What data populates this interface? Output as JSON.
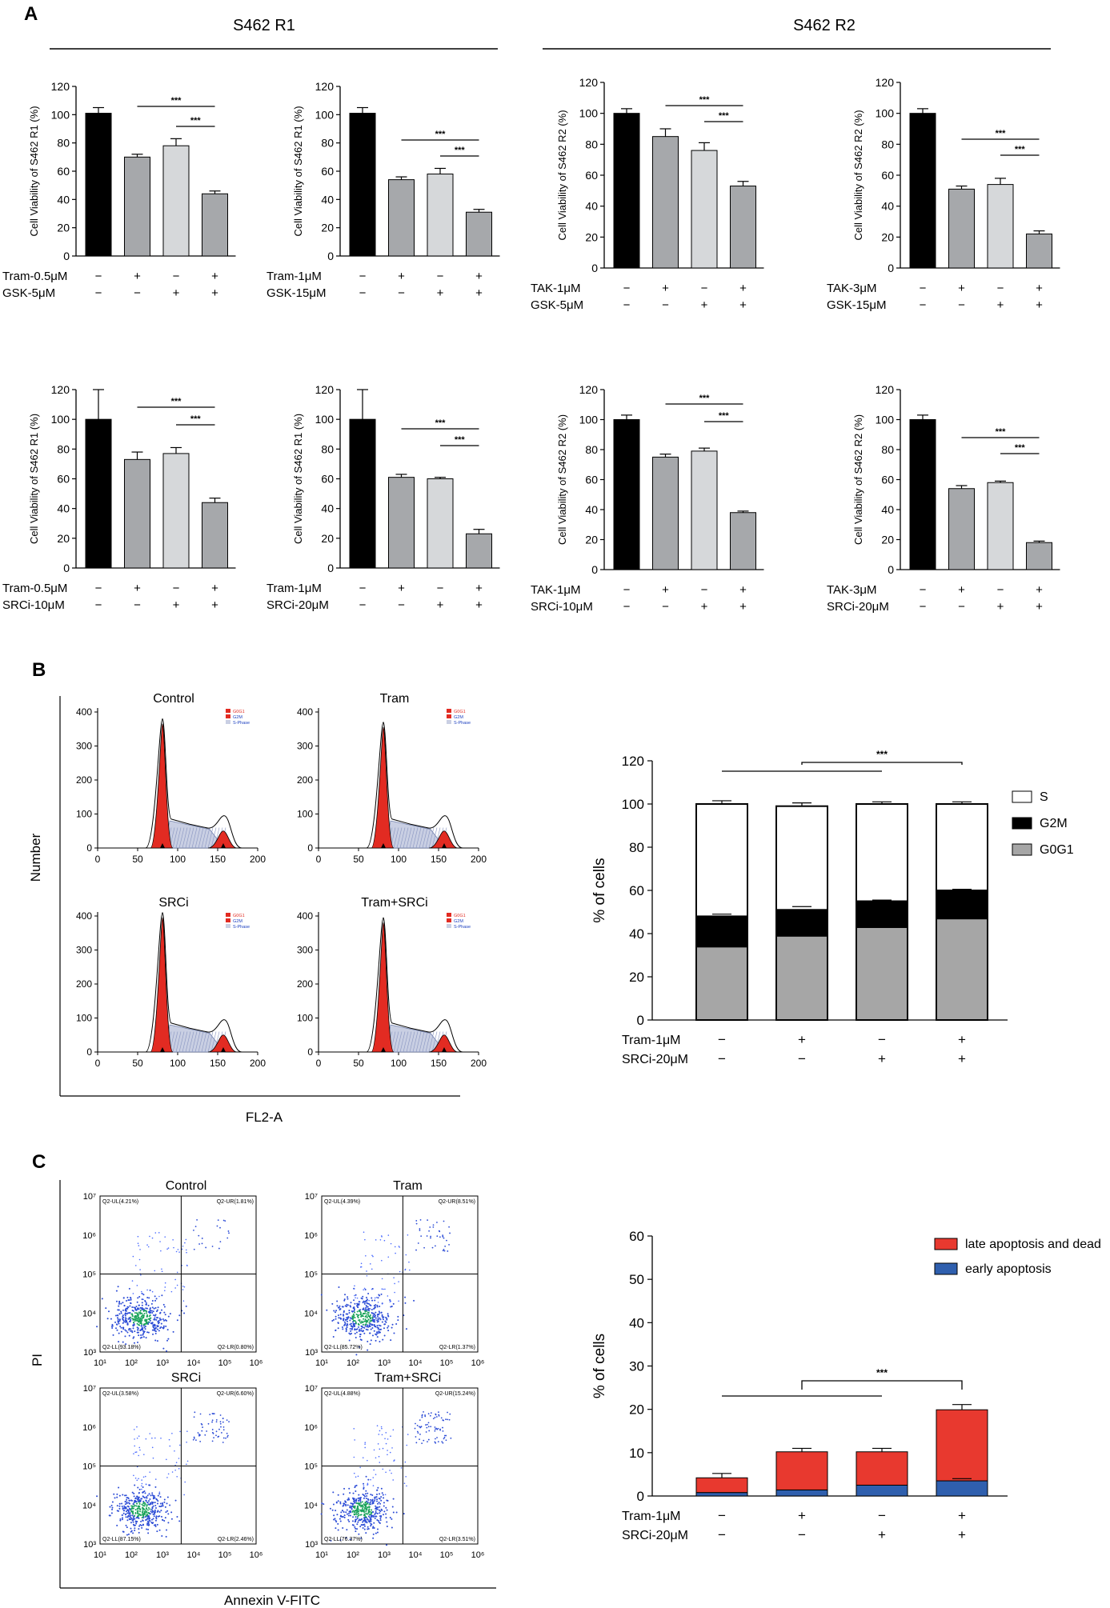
{
  "panels": {
    "A": "A",
    "B": "B",
    "C": "C"
  },
  "groupA": {
    "left": "S462 R1",
    "right": "S462 R2"
  },
  "sig": "***",
  "chart_data": [
    {
      "id": "a1",
      "type": "bar",
      "ylabel": "Cell Viability of S462 R1 (%)",
      "ylim": [
        0,
        120
      ],
      "yticks": [
        0,
        20,
        40,
        60,
        80,
        100,
        120
      ],
      "values": [
        101,
        70,
        78,
        44
      ],
      "errors": [
        4,
        2,
        5,
        2
      ],
      "conditions": [
        {
          "label": "Tram-0.5μM",
          "signs": [
            "−",
            "+",
            "−",
            "+"
          ]
        },
        {
          "label": "GSK-5μM",
          "signs": [
            "−",
            "−",
            "+",
            "+"
          ]
        }
      ]
    },
    {
      "id": "a2",
      "type": "bar",
      "ylabel": "Cell Viability of S462 R1 (%)",
      "ylim": [
        0,
        120
      ],
      "yticks": [
        0,
        20,
        40,
        60,
        80,
        100,
        120
      ],
      "values": [
        101,
        54,
        58,
        31
      ],
      "errors": [
        4,
        2,
        4,
        2
      ],
      "conditions": [
        {
          "label": "Tram-1μM",
          "signs": [
            "−",
            "+",
            "−",
            "+"
          ]
        },
        {
          "label": "GSK-15μM",
          "signs": [
            "−",
            "−",
            "+",
            "+"
          ]
        }
      ]
    },
    {
      "id": "a3",
      "type": "bar",
      "ylabel": "Cell Viability of S462 R2 (%)",
      "ylim": [
        0,
        120
      ],
      "yticks": [
        0,
        20,
        40,
        60,
        80,
        100,
        120
      ],
      "values": [
        100,
        85,
        76,
        53
      ],
      "errors": [
        3,
        5,
        5,
        3
      ],
      "conditions": [
        {
          "label": "TAK-1μM",
          "signs": [
            "−",
            "+",
            "−",
            "+"
          ]
        },
        {
          "label": "GSK-5μM",
          "signs": [
            "−",
            "−",
            "+",
            "+"
          ]
        }
      ]
    },
    {
      "id": "a4",
      "type": "bar",
      "ylabel": "Cell Viability of S462 R2 (%)",
      "ylim": [
        0,
        120
      ],
      "yticks": [
        0,
        20,
        40,
        60,
        80,
        100,
        120
      ],
      "values": [
        100,
        51,
        54,
        22
      ],
      "errors": [
        3,
        2,
        4,
        2
      ],
      "conditions": [
        {
          "label": "TAK-3μM",
          "signs": [
            "−",
            "+",
            "−",
            "+"
          ]
        },
        {
          "label": "GSK-15μM",
          "signs": [
            "−",
            "−",
            "+",
            "+"
          ]
        }
      ]
    },
    {
      "id": "a5",
      "type": "bar",
      "ylabel": "Cell Viability of S462 R1 (%)",
      "ylim": [
        0,
        120
      ],
      "yticks": [
        0,
        20,
        40,
        60,
        80,
        100,
        120
      ],
      "values": [
        100,
        73,
        77,
        44
      ],
      "errors": [
        20,
        5,
        4,
        3
      ],
      "conditions": [
        {
          "label": "Tram-0.5μM",
          "signs": [
            "−",
            "+",
            "−",
            "+"
          ]
        },
        {
          "label": "SRCi-10μM",
          "signs": [
            "−",
            "−",
            "+",
            "+"
          ]
        }
      ]
    },
    {
      "id": "a6",
      "type": "bar",
      "ylabel": "Cell Viability of S462 R1 (%)",
      "ylim": [
        0,
        120
      ],
      "yticks": [
        0,
        20,
        40,
        60,
        80,
        100,
        120
      ],
      "values": [
        100,
        61,
        60,
        23
      ],
      "errors": [
        20,
        2,
        1,
        3
      ],
      "conditions": [
        {
          "label": "Tram-1μM",
          "signs": [
            "−",
            "+",
            "−",
            "+"
          ]
        },
        {
          "label": "SRCi-20μM",
          "signs": [
            "−",
            "−",
            "+",
            "+"
          ]
        }
      ]
    },
    {
      "id": "a7",
      "type": "bar",
      "ylabel": "Cell Viability of S462 R2 (%)",
      "ylim": [
        0,
        120
      ],
      "yticks": [
        0,
        20,
        40,
        60,
        80,
        100,
        120
      ],
      "values": [
        100,
        75,
        79,
        38
      ],
      "errors": [
        3,
        2,
        2,
        1
      ],
      "conditions": [
        {
          "label": "TAK-1μM",
          "signs": [
            "−",
            "+",
            "−",
            "+"
          ]
        },
        {
          "label": "SRCi-10μM",
          "signs": [
            "−",
            "−",
            "+",
            "+"
          ]
        }
      ]
    },
    {
      "id": "a8",
      "type": "bar",
      "ylabel": "Cell Viability of S462 R2 (%)",
      "ylim": [
        0,
        120
      ],
      "yticks": [
        0,
        20,
        40,
        60,
        80,
        100,
        120
      ],
      "values": [
        100,
        54,
        58,
        18
      ],
      "errors": [
        3,
        2,
        1,
        1
      ],
      "conditions": [
        {
          "label": "TAK-3μM",
          "signs": [
            "−",
            "+",
            "−",
            "+"
          ]
        },
        {
          "label": "SRCi-20μM",
          "signs": [
            "−",
            "−",
            "+",
            "+"
          ]
        }
      ]
    },
    {
      "id": "b_hist",
      "type": "histogram",
      "xlabel": "FL2-A",
      "ylabel": "Number",
      "xticks": [
        0,
        50,
        100,
        150,
        200
      ],
      "legend": [
        "G0G1",
        "G2M",
        "S-Phase"
      ],
      "panels": [
        {
          "title": "Control",
          "ylim": [
            0,
            400
          ],
          "yticks": [
            0,
            100,
            200,
            300,
            400
          ],
          "peak": 365
        },
        {
          "title": "Tram",
          "ylim": [
            0,
            400
          ],
          "yticks": [
            0,
            100,
            200,
            300,
            400
          ],
          "peak": 355
        },
        {
          "title": "SRCi",
          "ylim": [
            0,
            400
          ],
          "yticks": [
            0,
            100,
            200,
            300,
            400
          ],
          "peak": 395
        },
        {
          "title": "Tram+SRCi",
          "ylim": [
            0,
            400
          ],
          "yticks": [
            0,
            100,
            200,
            300,
            400
          ],
          "peak": 380
        }
      ]
    },
    {
      "id": "b_bar",
      "type": "bar",
      "stacked": true,
      "ylabel": "% of cells",
      "ylim": [
        0,
        120
      ],
      "yticks": [
        0,
        20,
        40,
        60,
        80,
        100,
        120
      ],
      "categories": [
        "Control",
        "Tram",
        "SRCi",
        "Tram+SRCi"
      ],
      "series": [
        {
          "name": "G0G1",
          "color": "#a6a6a6",
          "values": [
            34,
            39,
            43,
            47
          ]
        },
        {
          "name": "G2M",
          "color": "#000000",
          "values": [
            14,
            12,
            12,
            13
          ]
        },
        {
          "name": "S",
          "color": "#ffffff",
          "values": [
            52,
            48,
            45,
            40
          ]
        }
      ],
      "legend_order": [
        "S",
        "G2M",
        "G0G1"
      ],
      "errors_top": [
        1.5,
        1.5,
        1,
        1
      ],
      "errors_mid": [
        1,
        1.5,
        0.5,
        0.5
      ],
      "conditions": [
        {
          "label": "Tram-1μM",
          "signs": [
            "−",
            "+",
            "−",
            "+"
          ]
        },
        {
          "label": "SRCi-20μM",
          "signs": [
            "−",
            "−",
            "+",
            "+"
          ]
        }
      ]
    },
    {
      "id": "c_flow",
      "type": "scatter",
      "xlabel": "Annexin V-FITC",
      "ylabel": "PI",
      "xticks": [
        "10¹",
        "10²",
        "10³",
        "10⁴",
        "10⁵",
        "10⁶"
      ],
      "yticks": [
        "10³",
        "10⁴",
        "10⁵",
        "10⁶",
        "10⁷"
      ],
      "panels": [
        {
          "title": "Control",
          "ul": "Q2-UL(4.21%)",
          "ur": "Q2-UR(1.81%)",
          "ll": "Q2-LL(93.18%)",
          "lr": "Q2-LR(0.80%)"
        },
        {
          "title": "Tram",
          "ul": "Q2-UL(4.39%)",
          "ur": "Q2-UR(8.51%)",
          "ll": "Q2-LL(85.72%)",
          "lr": "Q2-LR(1.37%)"
        },
        {
          "title": "SRCi",
          "ul": "Q2-UL(3.58%)",
          "ur": "Q2-UR(6.60%)",
          "ll": "Q2-LL(87.15%)",
          "lr": "Q2-LR(2.46%)"
        },
        {
          "title": "Tram+SRCi",
          "ul": "Q2-UL(4.88%)",
          "ur": "Q2-UR(15.24%)",
          "ll": "Q2-LL(76.37%)",
          "lr": "Q2-LR(3.51%)"
        }
      ]
    },
    {
      "id": "c_bar",
      "type": "bar",
      "stacked": true,
      "ylabel": "% of cells",
      "ylim": [
        0,
        60
      ],
      "yticks": [
        0,
        10,
        20,
        30,
        40,
        50,
        60
      ],
      "categories": [
        "Control",
        "Tram",
        "SRCi",
        "Tram+SRCi"
      ],
      "series": [
        {
          "name": "early apoptosis",
          "color": "#2f5fae",
          "values": [
            0.8,
            1.4,
            2.5,
            3.5
          ]
        },
        {
          "name": "late apoptosis and dead",
          "color": "#e8392f",
          "values": [
            3.4,
            8.8,
            7.7,
            16.4
          ]
        }
      ],
      "legend_order": [
        "late apoptosis and dead",
        "early apoptosis"
      ],
      "errors_top": [
        1,
        0.8,
        0.8,
        1.2
      ],
      "errors_mid": [
        0,
        0,
        0,
        0.5
      ],
      "conditions": [
        {
          "label": "Tram-1μM",
          "signs": [
            "−",
            "+",
            "−",
            "+"
          ]
        },
        {
          "label": "SRCi-20μM",
          "signs": [
            "−",
            "−",
            "+",
            "+"
          ]
        }
      ]
    }
  ]
}
